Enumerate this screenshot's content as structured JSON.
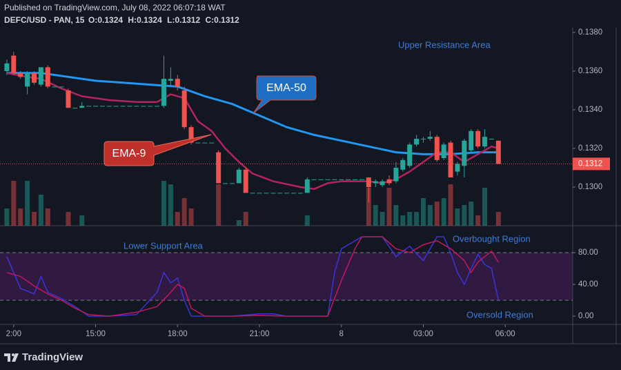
{
  "header": {
    "published": "Published on TradingView.com, July 08, 2022 06:07:18 WAT",
    "symbol": "DEFC/USD - PAN, 15",
    "ohlc_labels": [
      "O:",
      "H:",
      "L:",
      "C:"
    ]
  },
  "chart_data": [
    {
      "type": "candlestick",
      "x": [
        11.75,
        12,
        12.25,
        12.5,
        12.75,
        13,
        13.25,
        13.5,
        13.75,
        14,
        14.25,
        14.5,
        14.75,
        15,
        15.25,
        15.5,
        15.75,
        16,
        16.25,
        16.5,
        16.75,
        17,
        17.25,
        17.5,
        17.75,
        18,
        18.25,
        18.5,
        18.75,
        19,
        19.25,
        19.5,
        19.75,
        20,
        20.25,
        20.5,
        20.75,
        21,
        21.25,
        21.5,
        21.75,
        22,
        22.25,
        22.5,
        22.75,
        23,
        23.25,
        23.5,
        23.75,
        24,
        24.25,
        24.5,
        24.75,
        25,
        25.25,
        25.5,
        25.75,
        26,
        26.25,
        26.5,
        26.75,
        27,
        27.25,
        27.5,
        27.75,
        28,
        28.25,
        28.5,
        28.75,
        29,
        29.25,
        29.5,
        29.75
      ],
      "open": [
        0.136,
        0.1368,
        0.1359,
        0.1352,
        0.1359,
        0.1353,
        0.1362,
        0.1352,
        0.1352,
        0.135,
        0.1341,
        0.1341,
        0.1342,
        0.1342,
        0.1342,
        0.1342,
        0.1342,
        0.1342,
        0.1342,
        0.1342,
        0.1342,
        0.1342,
        0.1342,
        0.1342,
        0.1355,
        0.1356,
        0.135,
        0.1331,
        0.1323,
        0.1323,
        0.1323,
        0.1318,
        0.1302,
        0.1302,
        0.1302,
        0.1309,
        0.1297,
        0.1297,
        0.1297,
        0.1297,
        0.1297,
        0.1297,
        0.1297,
        0.1297,
        0.1297,
        0.1304,
        0.1304,
        0.1304,
        0.1304,
        0.1304,
        0.1304,
        0.1304,
        0.1304,
        0.1305,
        0.1302,
        0.1301,
        0.1304,
        0.1303,
        0.1309,
        0.1311,
        0.1322,
        0.1325,
        0.1325,
        0.1326,
        0.1315,
        0.1323,
        0.1308,
        0.1311,
        0.1319,
        0.1329,
        0.1321,
        0.1325,
        0.1324
      ],
      "high": [
        0.1366,
        0.137,
        0.136,
        0.136,
        0.136,
        0.1362,
        0.1363,
        0.1352,
        0.1352,
        0.1351,
        0.1341,
        0.1344,
        0.1342,
        0.1342,
        0.1342,
        0.1342,
        0.1342,
        0.1342,
        0.1342,
        0.1342,
        0.1342,
        0.1342,
        0.1342,
        0.1368,
        0.1362,
        0.1358,
        0.1352,
        0.1332,
        0.1323,
        0.1323,
        0.1323,
        0.1319,
        0.1302,
        0.1302,
        0.131,
        0.131,
        0.1297,
        0.1297,
        0.1297,
        0.1297,
        0.1297,
        0.1297,
        0.1297,
        0.1297,
        0.1305,
        0.1304,
        0.1304,
        0.1304,
        0.1304,
        0.1304,
        0.1304,
        0.1304,
        0.1304,
        0.1305,
        0.1304,
        0.1304,
        0.1306,
        0.1313,
        0.1315,
        0.1323,
        0.1327,
        0.1326,
        0.1329,
        0.1327,
        0.1323,
        0.1324,
        0.1313,
        0.1325,
        0.133,
        0.133,
        0.133,
        0.1325,
        0.1324
      ],
      "low": [
        0.1358,
        0.1358,
        0.1356,
        0.1348,
        0.1353,
        0.1352,
        0.1351,
        0.1352,
        0.1352,
        0.1341,
        0.1341,
        0.1341,
        0.1342,
        0.1342,
        0.1342,
        0.1342,
        0.1342,
        0.1342,
        0.1342,
        0.1342,
        0.1342,
        0.1342,
        0.1342,
        0.1341,
        0.1352,
        0.135,
        0.133,
        0.1322,
        0.1323,
        0.1323,
        0.1323,
        0.1302,
        0.1302,
        0.1302,
        0.1302,
        0.1297,
        0.1297,
        0.1297,
        0.1297,
        0.1297,
        0.1297,
        0.1297,
        0.1297,
        0.1297,
        0.1297,
        0.1304,
        0.1304,
        0.1304,
        0.1304,
        0.1304,
        0.1304,
        0.1304,
        0.1304,
        0.1292,
        0.13,
        0.13,
        0.1301,
        0.1302,
        0.1308,
        0.131,
        0.1321,
        0.1323,
        0.1324,
        0.1313,
        0.1314,
        0.1305,
        0.1306,
        0.1305,
        0.1318,
        0.132,
        0.132,
        0.1325,
        0.1312
      ],
      "close": [
        0.1364,
        0.1359,
        0.1357,
        0.1359,
        0.1354,
        0.1362,
        0.1352,
        0.1352,
        0.1352,
        0.1341,
        0.1341,
        0.1342,
        0.1342,
        0.1342,
        0.1342,
        0.1342,
        0.1342,
        0.1342,
        0.1342,
        0.1342,
        0.1342,
        0.1342,
        0.1342,
        0.1356,
        0.1356,
        0.1352,
        0.1331,
        0.1323,
        0.1323,
        0.1323,
        0.1323,
        0.1302,
        0.1302,
        0.1302,
        0.1309,
        0.1297,
        0.1297,
        0.1297,
        0.1297,
        0.1297,
        0.1297,
        0.1297,
        0.1297,
        0.1297,
        0.1304,
        0.1304,
        0.1304,
        0.1304,
        0.1304,
        0.1304,
        0.1304,
        0.1304,
        0.1304,
        0.13,
        0.1303,
        0.1303,
        0.1302,
        0.131,
        0.1314,
        0.1322,
        0.1325,
        0.1325,
        0.1326,
        0.1314,
        0.1322,
        0.1305,
        0.1312,
        0.1324,
        0.1329,
        0.1321,
        0.1326,
        0.1325,
        0.1312
      ],
      "volume": [
        25,
        65,
        25,
        65,
        20,
        45,
        25,
        0,
        0,
        20,
        0,
        15,
        0,
        0,
        0,
        0,
        0,
        0,
        0,
        0,
        0,
        0,
        0,
        65,
        60,
        20,
        40,
        25,
        0,
        0,
        0,
        60,
        0,
        0,
        8,
        20,
        0,
        0,
        0,
        0,
        0,
        0,
        0,
        0,
        15,
        0,
        0,
        0,
        0,
        0,
        0,
        0,
        0,
        55,
        30,
        20,
        55,
        30,
        15,
        20,
        20,
        40,
        30,
        35,
        40,
        60,
        25,
        30,
        35,
        15,
        55,
        0,
        20
      ],
      "up_color": "#26a69a",
      "down_color": "#ef5350",
      "xlim": [
        11.5,
        32.47
      ],
      "xticks": [
        {
          "value": 12,
          "label": "2:00"
        },
        {
          "value": 15,
          "label": "15:00"
        },
        {
          "value": 18,
          "label": "18:00"
        },
        {
          "value": 21,
          "label": "21:00"
        },
        {
          "value": 24,
          "label": "8"
        },
        {
          "value": 27,
          "label": "03:00"
        },
        {
          "value": 30,
          "label": "06:00"
        }
      ],
      "ylim": [
        0.128,
        0.13825
      ],
      "yticks": [
        {
          "value": 0.138,
          "label": "0.1380"
        },
        {
          "value": 0.136,
          "label": "0.1360"
        },
        {
          "value": 0.134,
          "label": "0.1340"
        },
        {
          "value": 0.132,
          "label": "0.1320"
        },
        {
          "value": 0.13,
          "label": "0.1300"
        }
      ],
      "lines": [
        {
          "name": "EMA-50",
          "color": "#2196f3",
          "x": [
            11.75,
            13,
            14,
            15,
            16,
            17,
            18,
            19,
            20,
            21,
            22,
            23,
            24,
            25,
            26,
            27,
            28,
            29,
            29.75
          ],
          "values": [
            0.1359,
            0.1359,
            0.1357,
            0.1355,
            0.1354,
            0.1353,
            0.1352,
            0.1347,
            0.1343,
            0.1337,
            0.1331,
            0.1327,
            0.1324,
            0.1321,
            0.1318,
            0.1317,
            0.1317,
            0.1318,
            0.1318
          ]
        },
        {
          "name": "EMA-9",
          "color": "#b3245e",
          "x": [
            11.75,
            12.5,
            13,
            13.75,
            14.5,
            15.5,
            16.5,
            17.25,
            17.75,
            18.25,
            18.75,
            19.25,
            19.75,
            20.25,
            20.75,
            21.5,
            22.5,
            23,
            23.5,
            24,
            25,
            25.5,
            26,
            26.5,
            27,
            27.5,
            28,
            28.5,
            29,
            29.5,
            29.75
          ],
          "values": [
            0.1359,
            0.1357,
            0.1356,
            0.1351,
            0.1347,
            0.1345,
            0.1344,
            0.1344,
            0.1348,
            0.1346,
            0.1334,
            0.1329,
            0.132,
            0.1313,
            0.1307,
            0.1303,
            0.13,
            0.1299,
            0.1302,
            0.1303,
            0.1303,
            0.1302,
            0.1304,
            0.1308,
            0.1313,
            0.1318,
            0.1318,
            0.1313,
            0.1317,
            0.1321,
            0.132
          ]
        }
      ],
      "annotations": [
        "Upper Resistance Area"
      ]
    },
    {
      "type": "line",
      "ylim": [
        -10.4,
        111.3
      ],
      "yticks": [
        {
          "value": 80,
          "label": "80.00"
        },
        {
          "value": 40,
          "label": "40.00"
        },
        {
          "value": 0,
          "label": "0.00"
        }
      ],
      "band": [
        20,
        80
      ],
      "series": [
        {
          "color": "#3a35d8",
          "x": [
            11.75,
            12.25,
            12.75,
            13,
            13.25,
            13.75,
            14.25,
            14.75,
            15.5,
            16.5,
            17.25,
            17.5,
            17.75,
            18,
            18.25,
            18.5,
            19,
            20,
            21,
            21.5,
            22,
            23,
            23.5,
            23.75,
            24,
            24.75,
            25.5,
            26,
            26.5,
            27,
            27.5,
            27.75,
            28,
            28.25,
            28.5,
            28.75,
            29,
            29.25,
            29.5,
            29.75
          ],
          "values": [
            75,
            35,
            28,
            50,
            30,
            22,
            12,
            0,
            0,
            2,
            30,
            55,
            42,
            48,
            20,
            0,
            0,
            0,
            3,
            3,
            0,
            0,
            0,
            55,
            85,
            100,
            100,
            75,
            88,
            70,
            100,
            100,
            80,
            55,
            40,
            60,
            78,
            65,
            60,
            20
          ]
        },
        {
          "color": "#c2185b",
          "x": [
            11.75,
            12.25,
            12.75,
            13.25,
            13.75,
            14.25,
            14.75,
            15.5,
            16.5,
            17.25,
            17.75,
            18,
            18.25,
            18.5,
            19,
            20,
            21,
            22,
            23,
            23.5,
            24,
            24.5,
            24.75,
            25.5,
            26,
            26.5,
            27,
            27.5,
            28,
            28.5,
            28.75,
            29,
            29.5,
            29.75
          ],
          "values": [
            55,
            50,
            38,
            28,
            20,
            10,
            2,
            0,
            5,
            12,
            30,
            40,
            35,
            10,
            0,
            0,
            1,
            0,
            0,
            0,
            45,
            85,
            100,
            100,
            85,
            80,
            90,
            95,
            85,
            70,
            55,
            68,
            82,
            68
          ]
        }
      ],
      "annotations": [
        "Lower Support Area",
        "Overbought Region",
        "Oversold Region"
      ]
    }
  ],
  "footer": {
    "brand": "TradingView"
  }
}
